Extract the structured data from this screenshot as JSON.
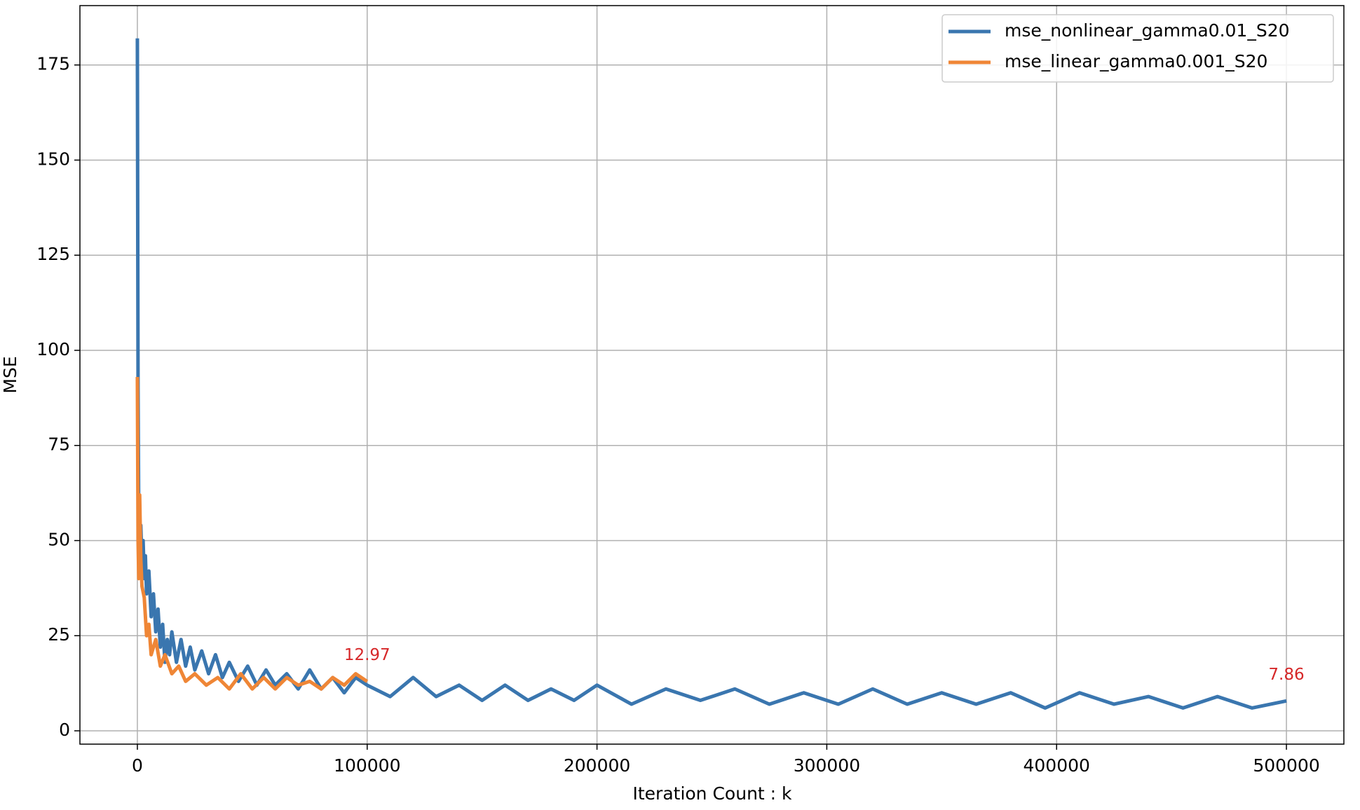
{
  "chart_data": {
    "type": "line",
    "x_label": "Iteration Count : k",
    "y_label": "MSE",
    "xlim": [
      -25000,
      525000
    ],
    "ylim": [
      -3.5,
      190.6
    ],
    "xticks": [
      0,
      100000,
      200000,
      300000,
      400000,
      500000
    ],
    "yticks": [
      0,
      25,
      50,
      75,
      100,
      125,
      150,
      175
    ],
    "grid": true,
    "legend": "upper right",
    "series": [
      {
        "name": "mse_nonlinear_gamma0.01_S20",
        "color": "#3a76af",
        "x": [
          0,
          300,
          600,
          1000,
          1500,
          2000,
          2500,
          3000,
          3500,
          4000,
          5000,
          6000,
          7000,
          8000,
          9000,
          10000,
          11000,
          12000,
          13000,
          14000,
          15000,
          17000,
          19000,
          21000,
          23000,
          25000,
          28000,
          31000,
          34000,
          37000,
          40000,
          44000,
          48000,
          52000,
          56000,
          60000,
          65000,
          70000,
          75000,
          80000,
          85000,
          90000,
          95000,
          100000,
          110000,
          120000,
          130000,
          140000,
          150000,
          160000,
          170000,
          180000,
          190000,
          200000,
          215000,
          230000,
          245000,
          260000,
          275000,
          290000,
          305000,
          320000,
          335000,
          350000,
          365000,
          380000,
          395000,
          410000,
          425000,
          440000,
          455000,
          470000,
          485000,
          500000
        ],
        "values": [
          182,
          90,
          56,
          48,
          54,
          44,
          50,
          40,
          46,
          36,
          42,
          30,
          36,
          26,
          32,
          22,
          28,
          18,
          24,
          20,
          26,
          18,
          24,
          17,
          22,
          16,
          21,
          15,
          20,
          14,
          18,
          13,
          17,
          12,
          16,
          12,
          15,
          11,
          16,
          11,
          14,
          10,
          14,
          12,
          9,
          14,
          9,
          12,
          8,
          12,
          8,
          11,
          8,
          12,
          7,
          11,
          8,
          11,
          7,
          10,
          7,
          11,
          7,
          10,
          7,
          10,
          6,
          10,
          7,
          9,
          6,
          9,
          6,
          7.86
        ]
      },
      {
        "name": "mse_linear_gamma0.001_S20",
        "color": "#ef8636",
        "x": [
          0,
          300,
          600,
          1000,
          1500,
          2000,
          3000,
          4000,
          5000,
          6000,
          8000,
          10000,
          12000,
          15000,
          18000,
          21000,
          25000,
          30000,
          35000,
          40000,
          45000,
          50000,
          55000,
          60000,
          65000,
          70000,
          75000,
          80000,
          85000,
          90000,
          95000,
          100000
        ],
        "values": [
          93,
          50,
          40,
          62,
          45,
          38,
          35,
          25,
          28,
          20,
          24,
          17,
          20,
          15,
          17,
          13,
          15,
          12,
          14,
          11,
          15,
          11,
          14,
          11,
          14,
          12,
          13,
          11,
          14,
          12,
          15,
          12.97
        ]
      }
    ],
    "annotations": [
      {
        "text": "12.97",
        "x": 100000,
        "y": 12.97,
        "color": "#d62728"
      },
      {
        "text": "7.86",
        "x": 500000,
        "y": 7.86,
        "color": "#d62728"
      }
    ]
  }
}
